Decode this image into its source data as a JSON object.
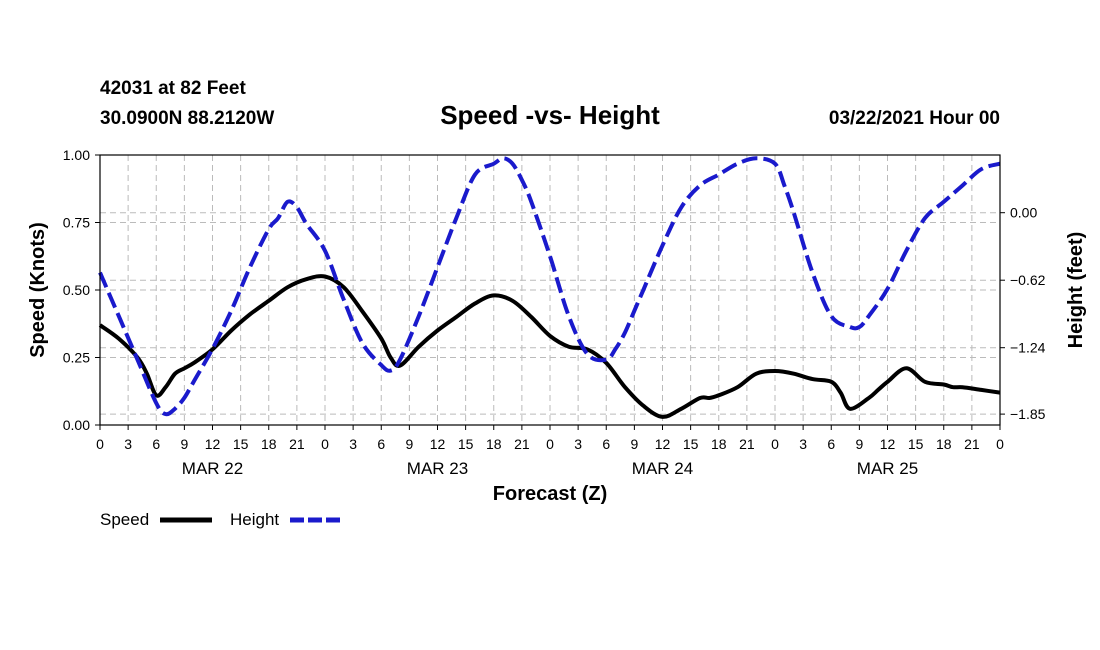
{
  "header": {
    "station": "42031 at 82 Feet",
    "coords": "30.0900N 88.2120W",
    "title": "Speed -vs- Height",
    "datetime": "03/22/2021 Hour 00"
  },
  "colors": {
    "speed": "#000000",
    "height": "#1a1acc",
    "grid": "#bbbbbb"
  },
  "chart_data": {
    "type": "line",
    "title": "Speed -vs- Height",
    "xlabel": "Forecast (Z)",
    "ylabel_left": "Speed (Knots)",
    "ylabel_right": "Height (feet)",
    "x_range": [
      0,
      96
    ],
    "x_tick_values": [
      0,
      3,
      6,
      9,
      12,
      15,
      18,
      21,
      24,
      27,
      30,
      33,
      36,
      39,
      42,
      45,
      48,
      51,
      54,
      57,
      60,
      63,
      66,
      69,
      72,
      75,
      78,
      81,
      84,
      87,
      90,
      93,
      96
    ],
    "x_tick_labels": [
      "0",
      "3",
      "6",
      "9",
      "12",
      "15",
      "18",
      "21",
      "0",
      "3",
      "6",
      "9",
      "12",
      "15",
      "18",
      "21",
      "0",
      "3",
      "6",
      "9",
      "12",
      "15",
      "18",
      "21",
      "0",
      "3",
      "6",
      "9",
      "12",
      "15",
      "18",
      "21",
      "0"
    ],
    "day_labels": [
      {
        "hour": 12,
        "label": "MAR 22"
      },
      {
        "hour": 36,
        "label": "MAR 23"
      },
      {
        "hour": 60,
        "label": "MAR 24"
      },
      {
        "hour": 84,
        "label": "MAR 25"
      }
    ],
    "ylim_left": [
      0,
      1.0
    ],
    "y_ticks_left": [
      "0.00",
      "0.25",
      "0.50",
      "0.75",
      "1.00"
    ],
    "ylim_right": [
      -1.95,
      0.53
    ],
    "y_ticks_right": [
      {
        "value": 0.0,
        "label": "0.00"
      },
      {
        "value": -0.62,
        "label": "−0.62"
      },
      {
        "value": -1.24,
        "label": "−1.24"
      },
      {
        "value": -1.85,
        "label": "−1.85"
      }
    ],
    "grid": true,
    "series": [
      {
        "name": "Speed",
        "axis": "left",
        "style": "solid",
        "x": [
          0,
          2,
          4,
          5,
          6,
          7,
          8,
          9,
          10,
          12,
          14,
          16,
          18,
          20,
          22,
          24,
          26,
          28,
          30,
          31,
          32,
          34,
          36,
          38,
          40,
          42,
          44,
          46,
          48,
          50,
          52,
          54,
          56,
          58,
          60,
          62,
          64,
          65,
          66,
          68,
          70,
          72,
          74,
          76,
          78,
          79,
          80,
          82,
          83,
          84,
          86,
          88,
          90,
          91,
          92,
          94,
          96
        ],
        "values": [
          0.37,
          0.32,
          0.25,
          0.19,
          0.11,
          0.14,
          0.19,
          0.21,
          0.23,
          0.28,
          0.35,
          0.41,
          0.46,
          0.51,
          0.54,
          0.55,
          0.51,
          0.42,
          0.32,
          0.25,
          0.22,
          0.29,
          0.35,
          0.4,
          0.45,
          0.48,
          0.46,
          0.4,
          0.33,
          0.29,
          0.28,
          0.23,
          0.14,
          0.07,
          0.03,
          0.06,
          0.1,
          0.1,
          0.11,
          0.14,
          0.19,
          0.2,
          0.19,
          0.17,
          0.16,
          0.12,
          0.06,
          0.1,
          0.13,
          0.16,
          0.21,
          0.16,
          0.15,
          0.14,
          0.14,
          0.13,
          0.12
        ]
      },
      {
        "name": "Height",
        "axis": "right",
        "style": "dashed",
        "x": [
          0,
          2,
          4,
          6,
          7,
          8,
          9,
          10,
          12,
          14,
          16,
          18,
          19,
          20,
          21,
          22,
          24,
          26,
          28,
          30,
          31,
          32,
          34,
          36,
          38,
          40,
          42,
          43,
          44,
          45,
          46,
          48,
          50,
          52,
          54,
          55,
          56,
          57,
          58,
          60,
          62,
          64,
          66,
          68,
          70,
          72,
          73,
          74,
          76,
          78,
          80,
          81,
          82,
          84,
          86,
          88,
          90,
          92,
          94,
          96
        ],
        "values": [
          -0.55,
          -0.95,
          -1.35,
          -1.75,
          -1.85,
          -1.8,
          -1.7,
          -1.55,
          -1.25,
          -0.9,
          -0.5,
          -0.15,
          -0.05,
          0.1,
          0.05,
          -0.1,
          -0.35,
          -0.8,
          -1.2,
          -1.4,
          -1.45,
          -1.35,
          -0.95,
          -0.5,
          -0.05,
          0.35,
          0.45,
          0.5,
          0.45,
          0.3,
          0.1,
          -0.4,
          -0.95,
          -1.3,
          -1.35,
          -1.25,
          -1.1,
          -0.9,
          -0.7,
          -0.3,
          0.05,
          0.25,
          0.35,
          0.45,
          0.5,
          0.45,
          0.25,
          0.0,
          -0.55,
          -0.95,
          -1.05,
          -1.05,
          -0.95,
          -0.7,
          -0.35,
          -0.05,
          0.1,
          0.25,
          0.4,
          0.45
        ]
      }
    ]
  },
  "legend": {
    "speed_label": "Speed",
    "height_label": "Height"
  }
}
